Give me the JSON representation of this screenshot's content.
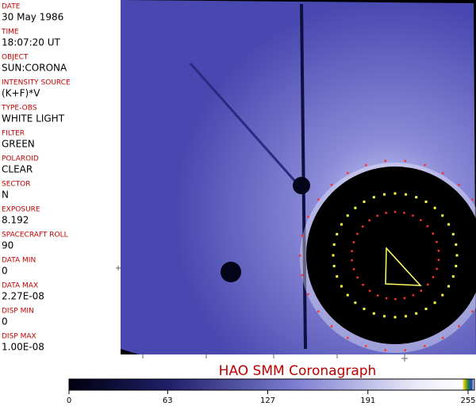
{
  "fields": [
    {
      "label": "DATE",
      "value": "30 May 1986"
    },
    {
      "label": "TIME",
      "value": "18:07:20 UT"
    },
    {
      "label": "OBJECT",
      "value": "SUN:CORONA"
    },
    {
      "label": "INTENSITY SOURCE",
      "value": "(K+F)*V"
    },
    {
      "label": "TYPE-OBS",
      "value": "WHITE LIGHT"
    },
    {
      "label": "FILTER",
      "value": "GREEN"
    },
    {
      "label": "POLAROID",
      "value": "CLEAR"
    },
    {
      "label": "SECTOR",
      "value": "N"
    },
    {
      "label": "EXPOSURE",
      "value": "8.192"
    },
    {
      "label": "SPACECRAFT ROLL",
      "value": "90"
    },
    {
      "label": "DATA MIN",
      "value": "0"
    },
    {
      "label": "DATA MAX",
      "value": "2.27E-08"
    },
    {
      "label": "DISP MIN",
      "value": "0"
    },
    {
      "label": "DISP MAX",
      "value": "1.00E-08"
    }
  ],
  "title": "HAO  SMM  Coronagraph",
  "colorbar": {
    "range": [
      0,
      255
    ],
    "ticks": [
      0,
      63,
      127,
      191,
      255
    ]
  }
}
